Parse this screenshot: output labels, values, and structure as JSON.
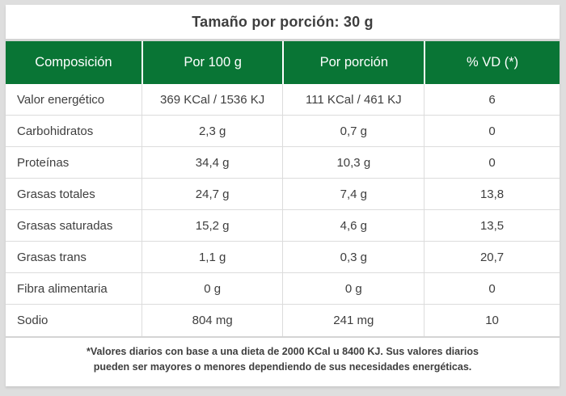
{
  "title": "Tamaño por porción: 30 g",
  "colors": {
    "header_green": "#097535",
    "frame_gray": "#dedede",
    "text_dark": "#3e3e3e",
    "divider_gray": "#d4d4d4",
    "row_line": "#dcdcdc",
    "header_text": "#ffffff"
  },
  "table": {
    "columns": [
      "Composición",
      "Por 100 g",
      "Por porción",
      "% VD (*)"
    ],
    "rows": [
      [
        "Valor energético",
        "369 KCal / 1536 KJ",
        "111 KCal / 461 KJ",
        "6"
      ],
      [
        "Carbohidratos",
        "2,3 g",
        "0,7 g",
        "0"
      ],
      [
        "Proteínas",
        "34,4 g",
        "10,3 g",
        "0"
      ],
      [
        "Grasas totales",
        "24,7 g",
        "7,4 g",
        "13,8"
      ],
      [
        "Grasas saturadas",
        "15,2 g",
        "4,6 g",
        "13,5"
      ],
      [
        "Grasas trans",
        "1,1 g",
        "0,3 g",
        "20,7"
      ],
      [
        "Fibra alimentaria",
        "0 g",
        "0 g",
        "0"
      ],
      [
        "Sodio",
        "804 mg",
        "241 mg",
        "10"
      ]
    ]
  },
  "footnote": {
    "line1": "*Valores diarios con base a una dieta de 2000 KCal u 8400 KJ. Sus valores diarios",
    "line2": "pueden ser mayores o menores dependiendo de sus necesidades energéticas."
  }
}
